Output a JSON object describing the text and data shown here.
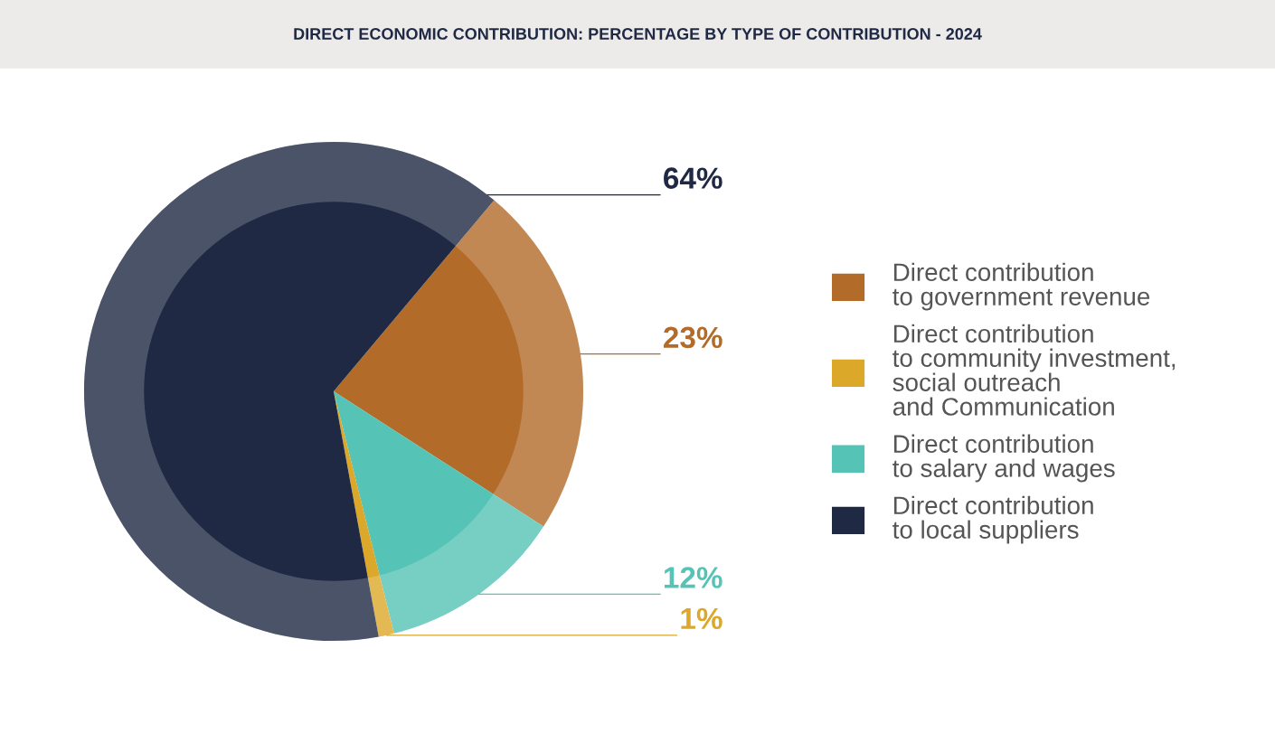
{
  "chart_data": {
    "type": "pie",
    "title": "DIRECT ECONOMIC CONTRIBUTION: PERCENTAGE BY TYPE OF CONTRIBUTION - 2024",
    "categories": [
      "Direct contribution\nto government revenue",
      "Direct contribution\nto salary and wages",
      "Direct contribution\nto community investment,\nsocial outreach\nand Communication",
      "Direct contribution\nto local suppliers"
    ],
    "values": [
      23,
      12,
      1,
      64
    ],
    "colors": [
      "#b36b29",
      "#55c3b6",
      "#dba829",
      "#1f2944"
    ],
    "value_labels": [
      "23%",
      "12%",
      "1%",
      "64%"
    ],
    "legend": "right"
  }
}
